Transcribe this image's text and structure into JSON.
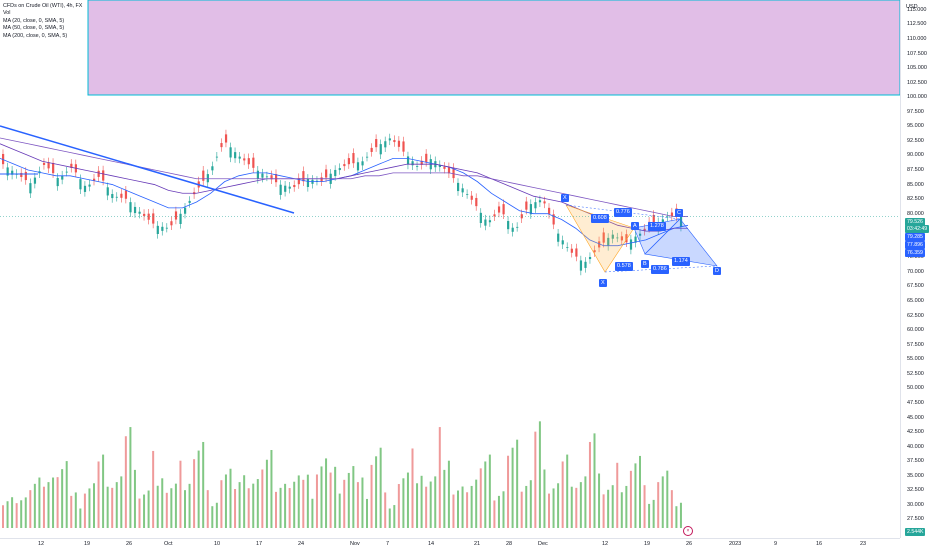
{
  "legend": {
    "title": "CFDs on Crude Oil (WTI), 4h, FX",
    "vol": "Vol",
    "ma1": "MA (20, close, 0, SMA, 5)",
    "ma2": "MA (50, close, 0, SMA, 5)",
    "ma3": "MA (200, close, 0, SMA, 5)"
  },
  "currency": "USD",
  "price_labels": [
    "115.000",
    "112.500",
    "110.000",
    "107.500",
    "105.000",
    "102.500",
    "100.000",
    "97.500",
    "95.000",
    "92.500",
    "90.000",
    "87.500",
    "85.000",
    "82.500",
    "80.000",
    "77.500",
    "75.000",
    "72.500",
    "70.000",
    "67.500",
    "65.000",
    "62.500",
    "60.000",
    "57.500",
    "55.000",
    "52.500",
    "50.000",
    "47.500",
    "45.000",
    "42.500",
    "40.000",
    "37.500",
    "35.000",
    "32.500",
    "30.000",
    "27.500",
    "25.000"
  ],
  "time_labels": [
    "12",
    "19",
    "26",
    "Oct",
    "10",
    "17",
    "24",
    "Nov",
    "7",
    "14",
    "21",
    "28",
    "Dec",
    "12",
    "19",
    "26",
    "2023",
    "9",
    "16",
    "23"
  ],
  "price_tags": [
    {
      "text": "79.526",
      "color": "#26a69a"
    },
    {
      "text": "03:42:49",
      "color": "#26a69a"
    },
    {
      "text": "79.285",
      "color": "#2962ff"
    },
    {
      "text": "77.896",
      "color": "#2962ff"
    },
    {
      "text": "76.359",
      "color": "#2962ff"
    }
  ],
  "volume_tag": "2.544K",
  "pattern": {
    "points": [
      "X",
      "A",
      "B",
      "C",
      "D"
    ],
    "ratios": [
      "0.608",
      "0.776",
      "1.278",
      "0.578",
      "0.786",
      "1.174"
    ]
  },
  "close_marker": "×",
  "colors": {
    "up": "#26a69a",
    "down": "#ef5350",
    "vol_up": "#81c784",
    "vol_down": "#ef9a9a",
    "accent": "#2962ff",
    "alert_zone": "#e1bee7"
  },
  "chart_data": {
    "type": "line",
    "title": "CFDs on Crude Oil (WTI), 4h, FX",
    "ylabel": "USD",
    "ylim": [
      25,
      116
    ],
    "y_ticks": [
      115,
      112.5,
      110,
      107.5,
      105,
      102.5,
      100,
      97.5,
      95,
      92.5,
      90,
      87.5,
      85,
      82.5,
      80,
      77.5,
      75,
      72.5,
      70,
      67.5,
      65,
      62.5,
      60,
      57.5,
      55,
      52.5,
      50,
      47.5,
      45,
      42.5,
      40,
      37.5,
      35,
      32.5,
      30,
      27.5,
      25
    ],
    "x_ticks": [
      "12",
      "19",
      "26",
      "Oct",
      "10",
      "17",
      "24",
      "Nov",
      "7",
      "14",
      "21",
      "28",
      "Dec",
      "12",
      "19",
      "26",
      "2023",
      "9",
      "16",
      "23"
    ],
    "series": [
      {
        "name": "Close",
        "values": [
          88.5,
          86.8,
          85.2,
          88.5,
          86.0,
          88.0,
          84.5,
          86.5,
          83.0,
          82.5,
          80.0,
          78.0,
          77.5,
          80.5,
          84.0,
          87.5,
          92.5,
          90.0,
          88.0,
          86.5,
          85.0,
          84.5,
          86.0,
          85.5,
          87.5,
          88.5,
          89.0,
          91.5,
          93.0,
          90.5,
          88.0,
          89.5,
          87.5,
          85.0,
          82.0,
          78.5,
          80.5,
          77.0,
          81.5,
          82.5,
          77.0,
          73.5,
          71.5,
          74.0,
          76.5,
          75.0,
          76.5,
          78.0,
          79.5,
          79.5
        ]
      },
      {
        "name": "MA (20, close, 0, SMA, 5)",
        "values": [
          89.5,
          88.5,
          87.5,
          87.0,
          86.5,
          86.5,
          86.0,
          85.5,
          85.0,
          84.0,
          83.0,
          82.0,
          81.0,
          81.0,
          82.0,
          83.5,
          85.5,
          86.5,
          87.0,
          87.0,
          86.5,
          86.0,
          85.5,
          85.5,
          86.0,
          86.5,
          87.5,
          88.5,
          89.5,
          89.5,
          89.0,
          88.5,
          88.0,
          87.0,
          85.5,
          83.5,
          82.0,
          80.5,
          80.0,
          80.0,
          79.0,
          77.5,
          75.5,
          74.5,
          74.5,
          75.0,
          75.5,
          76.5,
          77.5,
          78.0
        ]
      },
      {
        "name": "MA (50, close, 0, SMA, 5)",
        "values": [
          92.0,
          91.0,
          90.0,
          89.0,
          88.5,
          88.0,
          87.5,
          87.0,
          86.5,
          86.0,
          85.5,
          85.0,
          84.0,
          83.5,
          83.5,
          84.0,
          84.5,
          85.0,
          85.5,
          86.0,
          86.0,
          86.0,
          86.0,
          86.0,
          86.0,
          86.5,
          87.0,
          87.5,
          88.0,
          88.5,
          88.5,
          88.5,
          88.0,
          87.5,
          87.0,
          86.0,
          85.0,
          84.0,
          83.0,
          82.5,
          82.0,
          81.0,
          80.0,
          79.0,
          78.0,
          77.5,
          77.0,
          77.0,
          77.5,
          77.5
        ]
      },
      {
        "name": "MA (200, close, 0, SMA, 5)",
        "values": [
          93.0,
          92.5,
          92.0,
          91.5,
          91.0,
          90.5,
          90.0,
          89.5,
          89.0,
          88.5,
          88.0,
          87.5,
          87.0,
          86.5,
          86.0,
          86.0,
          86.0,
          86.0,
          86.0,
          86.0,
          86.0,
          86.0,
          86.0,
          86.0,
          86.0,
          86.0,
          86.5,
          86.5,
          87.0,
          87.0,
          87.0,
          87.0,
          87.0,
          86.5,
          86.5,
          86.0,
          85.5,
          85.0,
          84.5,
          84.0,
          83.5,
          83.0,
          82.5,
          82.0,
          81.5,
          81.0,
          80.5,
          80.0,
          79.5,
          79.5
        ]
      }
    ],
    "volume": {
      "ylim_note": "volume pane at bottom",
      "values": [
        0.35,
        0.25,
        0.55,
        0.4,
        0.7,
        0.3,
        0.45,
        0.6,
        0.5,
        0.8,
        0.35,
        0.65,
        0.4,
        0.55,
        0.75,
        0.3,
        0.5,
        0.6,
        0.4,
        0.85,
        0.35,
        0.55,
        0.45,
        0.7,
        0.5,
        0.6,
        0.4,
        0.75,
        0.3,
        0.5,
        0.65,
        0.45,
        0.8,
        0.35,
        0.55,
        0.6,
        0.4,
        0.7,
        0.5,
        0.9,
        0.45,
        0.6,
        0.5,
        0.75,
        0.4,
        0.55,
        0.65,
        0.35,
        0.5,
        0.3
      ]
    }
  }
}
